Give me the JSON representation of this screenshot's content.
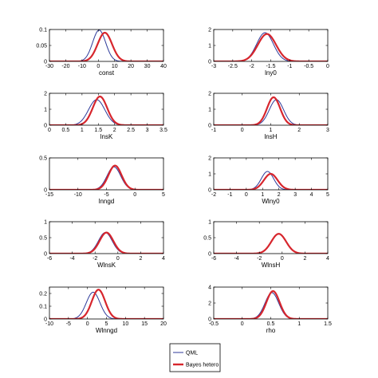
{
  "colors": {
    "qml": "#2d3a9a",
    "bayes": "#d7262d",
    "axis": "#000000",
    "background": "#ffffff"
  },
  "legend": {
    "placement": "bottom-center",
    "items": [
      {
        "label": "QML",
        "color": "#2d3a9a"
      },
      {
        "label": "Bayes hetero",
        "color": "#d7262d"
      }
    ]
  },
  "chart_data": [
    {
      "type": "line",
      "xlabel": "const",
      "xlim": [
        -30,
        40
      ],
      "ylim": [
        0,
        0.1
      ],
      "xticks": [
        "-30",
        "-20",
        "-10",
        "0",
        "10",
        "20",
        "30",
        "40"
      ],
      "yticks": [
        "0",
        "0.05",
        "0.1"
      ],
      "series": [
        {
          "name": "QML",
          "mean": 0.5,
          "sd": 4.0,
          "peak": 0.098
        },
        {
          "name": "Bayes hetero",
          "mean": 4.0,
          "sd": 4.4,
          "peak": 0.09
        }
      ]
    },
    {
      "type": "line",
      "xlabel": "lny0",
      "xlim": [
        -3,
        0
      ],
      "ylim": [
        0,
        2
      ],
      "xticks": [
        "-3",
        "-2.5",
        "-2",
        "-1.5",
        "-1",
        "-0.5",
        "0"
      ],
      "yticks": [
        "0",
        "1",
        "2"
      ],
      "series": [
        {
          "name": "QML",
          "mean": -1.65,
          "sd": 0.22,
          "peak": 1.8
        },
        {
          "name": "Bayes hetero",
          "mean": -1.6,
          "sd": 0.24,
          "peak": 1.72
        }
      ]
    },
    {
      "type": "line",
      "xlabel": "lnsK",
      "xlim": [
        0,
        3.5
      ],
      "ylim": [
        0,
        2
      ],
      "xticks": [
        "0",
        "0.5",
        "1",
        "1.5",
        "2",
        "2.5",
        "3",
        "3.5"
      ],
      "yticks": [
        "0",
        "1",
        "2"
      ],
      "series": [
        {
          "name": "QML",
          "mean": 1.45,
          "sd": 0.25,
          "peak": 1.6
        },
        {
          "name": "Bayes hetero",
          "mean": 1.55,
          "sd": 0.22,
          "peak": 1.8
        }
      ]
    },
    {
      "type": "line",
      "xlabel": "lnsH",
      "xlim": [
        -1,
        3
      ],
      "ylim": [
        0,
        2
      ],
      "xticks": [
        "-1",
        "0",
        "1",
        "2",
        "3"
      ],
      "yticks": [
        "0",
        "1",
        "2"
      ],
      "series": [
        {
          "name": "QML",
          "mean": 1.2,
          "sd": 0.25,
          "peak": 1.6
        },
        {
          "name": "Bayes hetero",
          "mean": 1.1,
          "sd": 0.23,
          "peak": 1.75
        }
      ]
    },
    {
      "type": "line",
      "xlabel": "lnngd",
      "xlim": [
        -15,
        5
      ],
      "ylim": [
        0,
        0.5
      ],
      "xticks": [
        "-15",
        "-10",
        "-5",
        "0",
        "5"
      ],
      "yticks": [
        "0",
        "0.5"
      ],
      "series": [
        {
          "name": "QML",
          "mean": -3.7,
          "sd": 1.2,
          "peak": 0.36
        },
        {
          "name": "Bayes hetero",
          "mean": -3.5,
          "sd": 1.15,
          "peak": 0.38
        }
      ]
    },
    {
      "type": "line",
      "xlabel": "Wlny0",
      "xlim": [
        -2,
        5
      ],
      "ylim": [
        0,
        2
      ],
      "xticks": [
        "-2",
        "-1",
        "0",
        "1",
        "2",
        "3",
        "4",
        "5"
      ],
      "yticks": [
        "0",
        "1",
        "2"
      ],
      "series": [
        {
          "name": "QML",
          "mean": 1.3,
          "sd": 0.38,
          "peak": 1.15
        },
        {
          "name": "Bayes hetero",
          "mean": 1.5,
          "sd": 0.42,
          "peak": 1.0
        }
      ]
    },
    {
      "type": "line",
      "xlabel": "WlnsK",
      "xlim": [
        -6,
        4
      ],
      "ylim": [
        0,
        1
      ],
      "xticks": [
        "-6",
        "-4",
        "-2",
        "0",
        "2",
        "4"
      ],
      "yticks": [
        "0",
        "0.5",
        "1"
      ],
      "series": [
        {
          "name": "QML",
          "mean": -1.1,
          "sd": 0.6,
          "peak": 0.66
        },
        {
          "name": "Bayes hetero",
          "mean": -1.0,
          "sd": 0.6,
          "peak": 0.66
        }
      ]
    },
    {
      "type": "line",
      "xlabel": "WlnsH",
      "xlim": [
        -6,
        4
      ],
      "ylim": [
        0,
        1
      ],
      "xticks": [
        "-6",
        "-4",
        "-2",
        "0",
        "2",
        "4"
      ],
      "yticks": [
        "0",
        "0.5",
        "1"
      ],
      "series": [
        {
          "name": "QML",
          "mean": -0.3,
          "sd": 0.65,
          "peak": 0.62
        },
        {
          "name": "Bayes hetero",
          "mean": -0.3,
          "sd": 0.65,
          "peak": 0.62
        }
      ]
    },
    {
      "type": "line",
      "xlabel": "Wlnngd",
      "xlim": [
        -10,
        20
      ],
      "ylim": [
        0,
        0.25
      ],
      "xticks": [
        "-10",
        "-5",
        "0",
        "5",
        "10",
        "15",
        "20"
      ],
      "yticks": [
        "0",
        "0.1",
        "0.2"
      ],
      "series": [
        {
          "name": "QML",
          "mean": 1.5,
          "sd": 1.8,
          "peak": 0.21
        },
        {
          "name": "Bayes hetero",
          "mean": 2.9,
          "sd": 1.75,
          "peak": 0.23
        }
      ]
    },
    {
      "type": "line",
      "xlabel": "rho",
      "xlim": [
        -0.5,
        1.5
      ],
      "ylim": [
        0,
        4
      ],
      "xticks": [
        "-0.5",
        "0",
        "0.5",
        "1",
        "1.5"
      ],
      "yticks": [
        "0",
        "2",
        "4"
      ],
      "series": [
        {
          "name": "QML",
          "mean": 0.52,
          "sd": 0.12,
          "peak": 3.3
        },
        {
          "name": "Bayes hetero",
          "mean": 0.54,
          "sd": 0.115,
          "peak": 3.5
        }
      ]
    }
  ]
}
